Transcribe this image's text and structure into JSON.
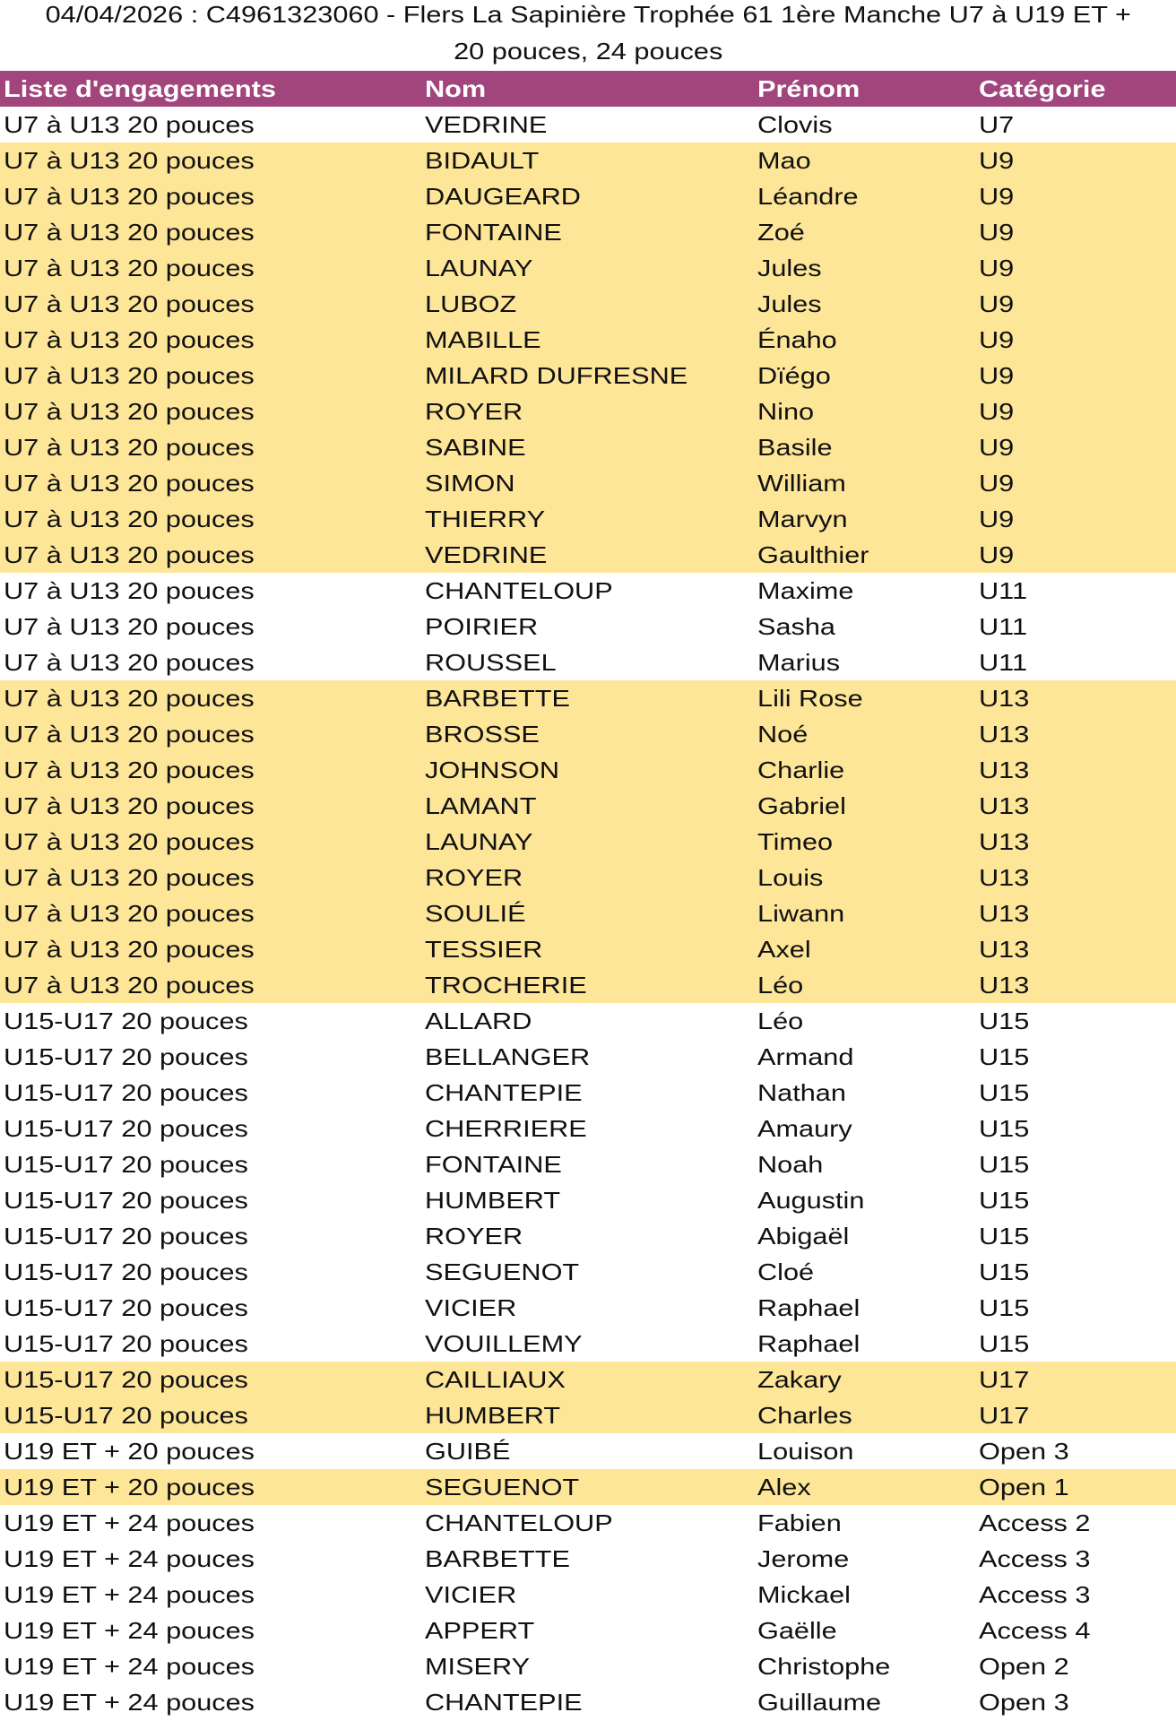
{
  "title": {
    "line1": "04/04/2026 : C4961323060 - Flers La Sapinière Trophée 61 1ère Manche U7 à U19 ET +",
    "line2": "20 pouces, 24 pouces"
  },
  "colors": {
    "header_bg": "#a2457d",
    "highlight": "#fee699",
    "plain": "#ffffff"
  },
  "columns": [
    "Liste d'engagements",
    "Nom",
    "Prénom",
    "Catégorie"
  ],
  "rows": [
    {
      "cells": [
        "U7 à U13 20 pouces",
        "VEDRINE",
        "Clovis",
        "U7"
      ],
      "highlight": false
    },
    {
      "cells": [
        "U7 à U13 20 pouces",
        "BIDAULT",
        "Mao",
        "U9"
      ],
      "highlight": true
    },
    {
      "cells": [
        "U7 à U13 20 pouces",
        "DAUGEARD",
        "Léandre",
        "U9"
      ],
      "highlight": true
    },
    {
      "cells": [
        "U7 à U13 20 pouces",
        "FONTAINE",
        "Zoé",
        "U9"
      ],
      "highlight": true
    },
    {
      "cells": [
        "U7 à U13 20 pouces",
        "LAUNAY",
        "Jules",
        "U9"
      ],
      "highlight": true
    },
    {
      "cells": [
        "U7 à U13 20 pouces",
        "LUBOZ",
        "Jules",
        "U9"
      ],
      "highlight": true
    },
    {
      "cells": [
        "U7 à U13 20 pouces",
        "MABILLE",
        "Énaho",
        "U9"
      ],
      "highlight": true
    },
    {
      "cells": [
        "U7 à U13 20 pouces",
        "MILARD DUFRESNE",
        "Dïégo",
        "U9"
      ],
      "highlight": true
    },
    {
      "cells": [
        "U7 à U13 20 pouces",
        "ROYER",
        "Nino",
        "U9"
      ],
      "highlight": true
    },
    {
      "cells": [
        "U7 à U13 20 pouces",
        "SABINE",
        "Basile",
        "U9"
      ],
      "highlight": true
    },
    {
      "cells": [
        "U7 à U13 20 pouces",
        "SIMON",
        "William",
        "U9"
      ],
      "highlight": true
    },
    {
      "cells": [
        "U7 à U13 20 pouces",
        "THIERRY",
        "Marvyn",
        "U9"
      ],
      "highlight": true
    },
    {
      "cells": [
        "U7 à U13 20 pouces",
        "VEDRINE",
        "Gaulthier",
        "U9"
      ],
      "highlight": true
    },
    {
      "cells": [
        "U7 à U13 20 pouces",
        "CHANTELOUP",
        "Maxime",
        "U11"
      ],
      "highlight": false
    },
    {
      "cells": [
        "U7 à U13 20 pouces",
        "POIRIER",
        "Sasha",
        "U11"
      ],
      "highlight": false
    },
    {
      "cells": [
        "U7 à U13 20 pouces",
        "ROUSSEL",
        "Marius",
        "U11"
      ],
      "highlight": false
    },
    {
      "cells": [
        "U7 à U13 20 pouces",
        "BARBETTE",
        "Lili Rose",
        "U13"
      ],
      "highlight": true
    },
    {
      "cells": [
        "U7 à U13 20 pouces",
        "BROSSE",
        "Noé",
        "U13"
      ],
      "highlight": true
    },
    {
      "cells": [
        "U7 à U13 20 pouces",
        "JOHNSON",
        "Charlie",
        "U13"
      ],
      "highlight": true
    },
    {
      "cells": [
        "U7 à U13 20 pouces",
        "LAMANT",
        "Gabriel",
        "U13"
      ],
      "highlight": true
    },
    {
      "cells": [
        "U7 à U13 20 pouces",
        "LAUNAY",
        "Timeo",
        "U13"
      ],
      "highlight": true
    },
    {
      "cells": [
        "U7 à U13 20 pouces",
        "ROYER",
        "Louis",
        "U13"
      ],
      "highlight": true
    },
    {
      "cells": [
        "U7 à U13 20 pouces",
        "SOULIÉ",
        "Liwann",
        "U13"
      ],
      "highlight": true
    },
    {
      "cells": [
        "U7 à U13 20 pouces",
        "TESSIER",
        "Axel",
        "U13"
      ],
      "highlight": true
    },
    {
      "cells": [
        "U7 à U13 20 pouces",
        "TROCHERIE",
        "Léo",
        "U13"
      ],
      "highlight": true
    },
    {
      "cells": [
        "U15-U17 20 pouces",
        "ALLARD",
        "Léo",
        "U15"
      ],
      "highlight": false
    },
    {
      "cells": [
        "U15-U17 20 pouces",
        "BELLANGER",
        "Armand",
        "U15"
      ],
      "highlight": false
    },
    {
      "cells": [
        "U15-U17 20 pouces",
        "CHANTEPIE",
        "Nathan",
        "U15"
      ],
      "highlight": false
    },
    {
      "cells": [
        "U15-U17 20 pouces",
        "CHERRIERE",
        "Amaury",
        "U15"
      ],
      "highlight": false
    },
    {
      "cells": [
        "U15-U17 20 pouces",
        "FONTAINE",
        "Noah",
        "U15"
      ],
      "highlight": false
    },
    {
      "cells": [
        "U15-U17 20 pouces",
        "HUMBERT",
        "Augustin",
        "U15"
      ],
      "highlight": false
    },
    {
      "cells": [
        "U15-U17 20 pouces",
        "ROYER",
        "Abigaël",
        "U15"
      ],
      "highlight": false
    },
    {
      "cells": [
        "U15-U17 20 pouces",
        "SEGUENOT",
        "Cloé",
        "U15"
      ],
      "highlight": false
    },
    {
      "cells": [
        "U15-U17 20 pouces",
        "VICIER",
        "Raphael",
        "U15"
      ],
      "highlight": false
    },
    {
      "cells": [
        "U15-U17 20 pouces",
        "VOUILLEMY",
        "Raphael",
        "U15"
      ],
      "highlight": false
    },
    {
      "cells": [
        "U15-U17 20 pouces",
        "CAILLIAUX",
        "Zakary",
        "U17"
      ],
      "highlight": true
    },
    {
      "cells": [
        "U15-U17 20 pouces",
        "HUMBERT",
        "Charles",
        "U17"
      ],
      "highlight": true
    },
    {
      "cells": [
        "U19 ET + 20 pouces",
        "GUIBÉ",
        "Louison",
        "Open 3"
      ],
      "highlight": false
    },
    {
      "cells": [
        "U19 ET + 20 pouces",
        "SEGUENOT",
        "Alex",
        "Open 1"
      ],
      "highlight": true
    },
    {
      "cells": [
        "U19 ET + 24 pouces",
        "CHANTELOUP",
        "Fabien",
        "Access 2"
      ],
      "highlight": false
    },
    {
      "cells": [
        "U19 ET + 24 pouces",
        "BARBETTE",
        "Jerome",
        "Access 3"
      ],
      "highlight": false
    },
    {
      "cells": [
        "U19 ET + 24 pouces",
        "VICIER",
        "Mickael",
        "Access 3"
      ],
      "highlight": false
    },
    {
      "cells": [
        "U19 ET + 24 pouces",
        "APPERT",
        "Gaëlle",
        "Access 4"
      ],
      "highlight": false
    },
    {
      "cells": [
        "U19 ET + 24 pouces",
        "MISERY",
        "Christophe",
        "Open 2"
      ],
      "highlight": false
    },
    {
      "cells": [
        "U19 ET + 24 pouces",
        "CHANTEPIE",
        "Guillaume",
        "Open 3"
      ],
      "highlight": false
    }
  ]
}
